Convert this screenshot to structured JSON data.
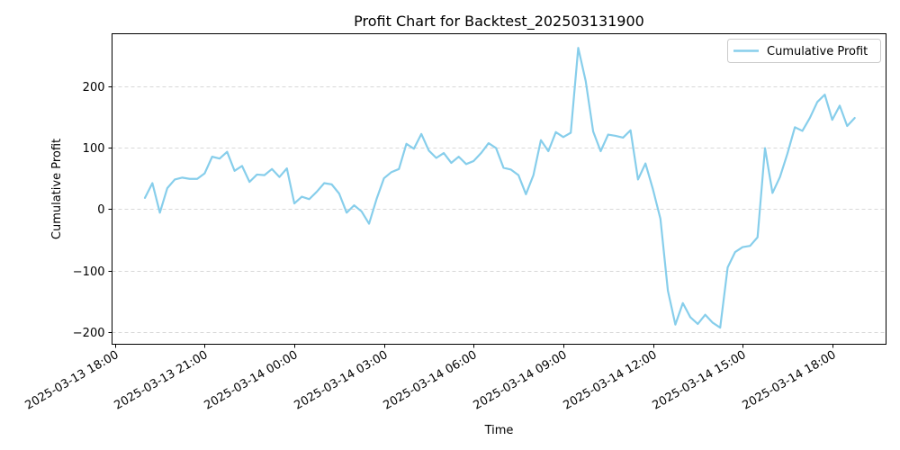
{
  "chart_data": {
    "type": "line",
    "title": "Profit Chart for Backtest_202503131900",
    "xlabel": "Time",
    "ylabel": "Cumulative Profit",
    "xlim": [
      "2025-03-13 17:54",
      "2025-03-14 19:48"
    ],
    "ylim": [
      -220,
      285
    ],
    "grid": {
      "x": false,
      "y": true,
      "style": "dashed"
    },
    "legend": {
      "placement": "top-right"
    },
    "x_ticks": [
      {
        "value": "2025-03-13 18:00",
        "label": "2025-03-13 18:00"
      },
      {
        "value": "2025-03-13 21:00",
        "label": "2025-03-13 21:00"
      },
      {
        "value": "2025-03-14 00:00",
        "label": "2025-03-14 00:00"
      },
      {
        "value": "2025-03-14 03:00",
        "label": "2025-03-14 03:00"
      },
      {
        "value": "2025-03-14 06:00",
        "label": "2025-03-14 06:00"
      },
      {
        "value": "2025-03-14 09:00",
        "label": "2025-03-14 09:00"
      },
      {
        "value": "2025-03-14 12:00",
        "label": "2025-03-14 12:00"
      },
      {
        "value": "2025-03-14 15:00",
        "label": "2025-03-14 15:00"
      },
      {
        "value": "2025-03-14 18:00",
        "label": "2025-03-14 18:00"
      }
    ],
    "y_ticks": [
      {
        "value": -200,
        "label": "−200"
      },
      {
        "value": -100,
        "label": "−100"
      },
      {
        "value": 0,
        "label": "0"
      },
      {
        "value": 100,
        "label": "100"
      },
      {
        "value": 200,
        "label": "200"
      }
    ],
    "series": [
      {
        "name": "Cumulative Profit",
        "color": "#87ceeb",
        "points": [
          [
            "2025-03-13 19:00",
            18
          ],
          [
            "2025-03-13 19:15",
            42
          ],
          [
            "2025-03-13 19:30",
            -6
          ],
          [
            "2025-03-13 19:45",
            34
          ],
          [
            "2025-03-13 20:00",
            48
          ],
          [
            "2025-03-13 20:15",
            51
          ],
          [
            "2025-03-13 20:30",
            49
          ],
          [
            "2025-03-13 20:45",
            49
          ],
          [
            "2025-03-13 21:00",
            58
          ],
          [
            "2025-03-13 21:15",
            85
          ],
          [
            "2025-03-13 21:30",
            82
          ],
          [
            "2025-03-13 21:45",
            93
          ],
          [
            "2025-03-13 22:00",
            62
          ],
          [
            "2025-03-13 22:15",
            70
          ],
          [
            "2025-03-13 22:30",
            44
          ],
          [
            "2025-03-13 22:45",
            56
          ],
          [
            "2025-03-13 23:00",
            55
          ],
          [
            "2025-03-13 23:15",
            65
          ],
          [
            "2025-03-13 23:30",
            52
          ],
          [
            "2025-03-13 23:45",
            66
          ],
          [
            "2025-03-14 00:00",
            9
          ],
          [
            "2025-03-14 00:15",
            20
          ],
          [
            "2025-03-14 00:30",
            16
          ],
          [
            "2025-03-14 00:45",
            28
          ],
          [
            "2025-03-14 01:00",
            42
          ],
          [
            "2025-03-14 01:15",
            40
          ],
          [
            "2025-03-14 01:30",
            25
          ],
          [
            "2025-03-14 01:45",
            -6
          ],
          [
            "2025-03-14 02:00",
            6
          ],
          [
            "2025-03-14 02:15",
            -4
          ],
          [
            "2025-03-14 02:30",
            -24
          ],
          [
            "2025-03-14 02:45",
            16
          ],
          [
            "2025-03-14 03:00",
            50
          ],
          [
            "2025-03-14 03:15",
            60
          ],
          [
            "2025-03-14 03:30",
            65
          ],
          [
            "2025-03-14 03:45",
            106
          ],
          [
            "2025-03-14 04:00",
            98
          ],
          [
            "2025-03-14 04:15",
            122
          ],
          [
            "2025-03-14 04:30",
            95
          ],
          [
            "2025-03-14 04:45",
            83
          ],
          [
            "2025-03-14 05:00",
            91
          ],
          [
            "2025-03-14 05:15",
            75
          ],
          [
            "2025-03-14 05:30",
            85
          ],
          [
            "2025-03-14 05:45",
            73
          ],
          [
            "2025-03-14 06:00",
            78
          ],
          [
            "2025-03-14 06:15",
            91
          ],
          [
            "2025-03-14 06:30",
            107
          ],
          [
            "2025-03-14 06:45",
            99
          ],
          [
            "2025-03-14 07:00",
            67
          ],
          [
            "2025-03-14 07:15",
            64
          ],
          [
            "2025-03-14 07:30",
            55
          ],
          [
            "2025-03-14 07:45",
            24
          ],
          [
            "2025-03-14 08:00",
            55
          ],
          [
            "2025-03-14 08:15",
            112
          ],
          [
            "2025-03-14 08:30",
            94
          ],
          [
            "2025-03-14 08:45",
            125
          ],
          [
            "2025-03-14 09:00",
            117
          ],
          [
            "2025-03-14 09:15",
            124
          ],
          [
            "2025-03-14 09:30",
            262
          ],
          [
            "2025-03-14 09:45",
            208
          ],
          [
            "2025-03-14 10:00",
            126
          ],
          [
            "2025-03-14 10:15",
            94
          ],
          [
            "2025-03-14 10:30",
            121
          ],
          [
            "2025-03-14 10:45",
            119
          ],
          [
            "2025-03-14 11:00",
            116
          ],
          [
            "2025-03-14 11:15",
            128
          ],
          [
            "2025-03-14 11:30",
            48
          ],
          [
            "2025-03-14 11:45",
            74
          ],
          [
            "2025-03-14 12:00",
            32
          ],
          [
            "2025-03-14 12:15",
            -16
          ],
          [
            "2025-03-14 12:30",
            -133
          ],
          [
            "2025-03-14 12:45",
            -188
          ],
          [
            "2025-03-14 13:00",
            -153
          ],
          [
            "2025-03-14 13:15",
            -176
          ],
          [
            "2025-03-14 13:30",
            -187
          ],
          [
            "2025-03-14 13:45",
            -172
          ],
          [
            "2025-03-14 14:00",
            -185
          ],
          [
            "2025-03-14 14:15",
            -193
          ],
          [
            "2025-03-14 14:30",
            -95
          ],
          [
            "2025-03-14 14:45",
            -70
          ],
          [
            "2025-03-14 15:00",
            -62
          ],
          [
            "2025-03-14 15:15",
            -60
          ],
          [
            "2025-03-14 15:30",
            -46
          ],
          [
            "2025-03-14 15:45",
            99
          ],
          [
            "2025-03-14 16:00",
            26
          ],
          [
            "2025-03-14 16:15",
            52
          ],
          [
            "2025-03-14 16:30",
            90
          ],
          [
            "2025-03-14 16:45",
            133
          ],
          [
            "2025-03-14 17:00",
            127
          ],
          [
            "2025-03-14 17:15",
            148
          ],
          [
            "2025-03-14 17:30",
            174
          ],
          [
            "2025-03-14 17:45",
            186
          ],
          [
            "2025-03-14 18:00",
            145
          ],
          [
            "2025-03-14 18:15",
            168
          ],
          [
            "2025-03-14 18:30",
            135
          ],
          [
            "2025-03-14 18:45",
            148
          ]
        ]
      }
    ]
  }
}
